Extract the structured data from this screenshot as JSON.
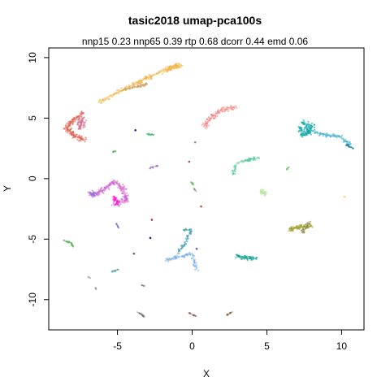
{
  "chart_data": {
    "type": "scatter",
    "title": "tasic2018 umap-pca100s",
    "subtitle": "nnp15 0.23 nnp65 0.39 rtp 0.68 dcorr 0.44 emd 0.06",
    "xlabel": "X",
    "ylabel": "Y",
    "xlim": [
      -9.6,
      11.5
    ],
    "ylim": [
      -12.5,
      10.8
    ],
    "xticks": [
      -5,
      0,
      5,
      10
    ],
    "yticks": [
      -10,
      -5,
      0,
      5,
      10
    ],
    "grid": false,
    "legend": "none",
    "clusters": [
      {
        "shape": "path",
        "color": "#f0b040",
        "points": [
          [
            -6.2,
            6.4
          ],
          [
            -4.5,
            7.4
          ],
          [
            -3.2,
            8.2
          ],
          [
            -2.0,
            8.9
          ],
          [
            -0.8,
            9.4
          ],
          [
            -1.5,
            9.0
          ]
        ],
        "spread": 0.18,
        "n": 140
      },
      {
        "shape": "path",
        "color": "#c8a060",
        "points": [
          [
            -4.6,
            7.3
          ],
          [
            -3.8,
            7.6
          ],
          [
            -3.0,
            7.8
          ]
        ],
        "spread": 0.12,
        "n": 40
      },
      {
        "shape": "path",
        "color": "#e06050",
        "points": [
          [
            -7.3,
            5.4
          ],
          [
            -8.0,
            4.8
          ],
          [
            -8.4,
            4.2
          ],
          [
            -8.0,
            3.6
          ],
          [
            -7.2,
            3.2
          ]
        ],
        "spread": 0.2,
        "n": 120
      },
      {
        "shape": "path",
        "color": "#d07090",
        "points": [
          [
            -7.5,
            4.2
          ],
          [
            -7.3,
            5.0
          ]
        ],
        "spread": 0.25,
        "n": 50
      },
      {
        "shape": "path",
        "color": "#f08080",
        "points": [
          [
            0.8,
            4.3
          ],
          [
            1.4,
            5.2
          ],
          [
            2.0,
            5.7
          ],
          [
            2.8,
            5.9
          ]
        ],
        "spread": 0.2,
        "n": 70
      },
      {
        "shape": "path",
        "color": "#00a0a0",
        "points": [
          [
            7.2,
            4.2
          ],
          [
            7.6,
            3.6
          ],
          [
            8.0,
            4.3
          ],
          [
            7.4,
            4.6
          ]
        ],
        "spread": 0.25,
        "n": 80
      },
      {
        "shape": "path",
        "color": "#40b0c8",
        "points": [
          [
            8.2,
            3.8
          ],
          [
            9.0,
            3.6
          ],
          [
            9.8,
            3.5
          ],
          [
            10.6,
            2.8
          ]
        ],
        "spread": 0.15,
        "n": 60
      },
      {
        "shape": "path",
        "color": "#2080a0",
        "points": [
          [
            10.3,
            2.8
          ],
          [
            10.8,
            2.5
          ]
        ],
        "spread": 0.06,
        "n": 15
      },
      {
        "shape": "path",
        "color": "#d060d0",
        "points": [
          [
            -6.8,
            -1.3
          ],
          [
            -6.0,
            -1.0
          ],
          [
            -5.2,
            -0.2
          ],
          [
            -4.6,
            -0.9
          ],
          [
            -4.4,
            -1.7
          ],
          [
            -5.2,
            -2.2
          ]
        ],
        "spread": 0.22,
        "n": 130
      },
      {
        "shape": "path",
        "color": "#ff10d0",
        "points": [
          [
            -5.2,
            -1.5
          ],
          [
            -5.0,
            -2.1
          ]
        ],
        "spread": 0.15,
        "n": 25
      },
      {
        "shape": "path",
        "color": "#9a70e0",
        "points": [
          [
            -6.5,
            -1.4
          ],
          [
            -6.8,
            -1.2
          ]
        ],
        "spread": 0.15,
        "n": 25
      },
      {
        "shape": "path",
        "color": "#3a9ab0",
        "points": [
          [
            -0.6,
            -4.2
          ],
          [
            -0.1,
            -4.3
          ],
          [
            -0.5,
            -5.4
          ],
          [
            -1.0,
            -6.2
          ]
        ],
        "spread": 0.1,
        "n": 45
      },
      {
        "shape": "path",
        "color": "#80b0e8",
        "points": [
          [
            -1.8,
            -6.8
          ],
          [
            -1.0,
            -6.5
          ],
          [
            0.0,
            -6.2
          ],
          [
            0.3,
            -7.5
          ]
        ],
        "spread": 0.14,
        "n": 70
      },
      {
        "shape": "path",
        "color": "#10a090",
        "points": [
          [
            3.0,
            -6.4
          ],
          [
            3.8,
            -6.6
          ],
          [
            4.3,
            -6.6
          ]
        ],
        "spread": 0.15,
        "n": 50
      },
      {
        "shape": "path",
        "color": "#50c890",
        "points": [
          [
            2.7,
            0.3
          ],
          [
            3.0,
            1.3
          ],
          [
            3.8,
            1.6
          ],
          [
            4.5,
            1.7
          ]
        ],
        "spread": 0.12,
        "n": 45
      },
      {
        "shape": "path",
        "color": "#b0e8a0",
        "points": [
          [
            4.6,
            -1.0
          ],
          [
            4.9,
            -1.3
          ]
        ],
        "spread": 0.15,
        "n": 30
      },
      {
        "shape": "path",
        "color": "#a0a030",
        "points": [
          [
            6.5,
            -4.2
          ],
          [
            7.2,
            -4.0
          ],
          [
            8.0,
            -3.9
          ]
        ],
        "spread": 0.17,
        "n": 60
      },
      {
        "shape": "path",
        "color": "#8a8a40",
        "points": [
          [
            7.4,
            -4.5
          ],
          [
            7.8,
            -3.6
          ]
        ],
        "spread": 0.14,
        "n": 25
      },
      {
        "shape": "path",
        "color": "#a07cd0",
        "points": [
          [
            -2.8,
            0.9
          ],
          [
            -2.3,
            1.1
          ]
        ],
        "spread": 0.07,
        "n": 15
      },
      {
        "shape": "path",
        "color": "#40b040",
        "points": [
          [
            -8.6,
            -5.1
          ],
          [
            -8.1,
            -5.3
          ],
          [
            -8.0,
            -5.6
          ]
        ],
        "spread": 0.06,
        "n": 15
      },
      {
        "shape": "path",
        "color": "#40a0a0",
        "points": [
          [
            -5.4,
            -7.7
          ],
          [
            -4.9,
            -7.5
          ]
        ],
        "spread": 0.05,
        "n": 8
      },
      {
        "shape": "path",
        "color": "#707070",
        "points": [
          [
            -3.7,
            -11.0
          ],
          [
            -3.2,
            -11.4
          ]
        ],
        "spread": 0.05,
        "n": 12
      },
      {
        "shape": "path",
        "color": "#805050",
        "points": [
          [
            -0.2,
            -11.1
          ],
          [
            0.3,
            -11.4
          ]
        ],
        "spread": 0.04,
        "n": 8
      },
      {
        "shape": "path",
        "color": "#806040",
        "points": [
          [
            2.3,
            -11.3
          ],
          [
            2.7,
            -11.0
          ]
        ],
        "spread": 0.04,
        "n": 8
      },
      {
        "shape": "path",
        "color": "#808080",
        "points": [
          [
            -3.4,
            -8.8
          ],
          [
            -3.2,
            -8.9
          ]
        ],
        "spread": 0.04,
        "n": 5
      },
      {
        "shape": "path",
        "color": "#30b060",
        "points": [
          [
            -3.0,
            3.7
          ],
          [
            -2.6,
            3.6
          ]
        ],
        "spread": 0.05,
        "n": 8
      },
      {
        "shape": "path",
        "color": "#40a040",
        "points": [
          [
            -5.3,
            2.2
          ],
          [
            -5.1,
            2.3
          ]
        ],
        "spread": 0.04,
        "n": 4
      },
      {
        "shape": "path",
        "color": "#60b060",
        "points": [
          [
            -0.1,
            -0.3
          ],
          [
            0.1,
            -0.5
          ]
        ],
        "spread": 0.05,
        "n": 6
      },
      {
        "shape": "path",
        "color": "#60a060",
        "points": [
          [
            0.1,
            -0.8
          ],
          [
            0.3,
            -1.1
          ]
        ],
        "spread": 0.04,
        "n": 4
      },
      {
        "shape": "path",
        "color": "#6060c0",
        "points": [
          [
            -5.1,
            -3.7
          ],
          [
            -4.9,
            -4.1
          ]
        ],
        "spread": 0.04,
        "n": 5
      },
      {
        "shape": "path",
        "color": "#70c070",
        "points": [
          [
            6.3,
            0.7
          ],
          [
            6.5,
            1.0
          ]
        ],
        "spread": 0.05,
        "n": 5
      },
      {
        "shape": "path",
        "color": "#a0a0a0",
        "points": [
          [
            -7.0,
            -8.1
          ],
          [
            -6.8,
            -8.2
          ]
        ],
        "spread": 0.03,
        "n": 3
      },
      {
        "shape": "path",
        "color": "#909090",
        "points": [
          [
            -6.5,
            -9.0
          ],
          [
            -6.4,
            -9.2
          ]
        ],
        "spread": 0.03,
        "n": 3
      },
      {
        "shape": "dot",
        "color": "#2020c0",
        "x": -3.8,
        "y": 4.0
      },
      {
        "shape": "dot",
        "color": "#202080",
        "x": -2.8,
        "y": -4.9
      },
      {
        "shape": "dot",
        "color": "#a04040",
        "x": -2.7,
        "y": -3.4
      },
      {
        "shape": "dot",
        "color": "#c05050",
        "x": 0.6,
        "y": -2.3
      },
      {
        "shape": "dot",
        "color": "#a05050",
        "x": -0.2,
        "y": 1.4
      },
      {
        "shape": "dot",
        "color": "#909090",
        "x": 0.2,
        "y": 3.0
      },
      {
        "shape": "dot",
        "color": "#f0e060",
        "x": 10.2,
        "y": -1.5
      },
      {
        "shape": "dot",
        "color": "#606060",
        "x": -3.9,
        "y": -6.2
      },
      {
        "shape": "dot",
        "color": "#6060a0",
        "x": 0.3,
        "y": -5.8
      }
    ]
  }
}
